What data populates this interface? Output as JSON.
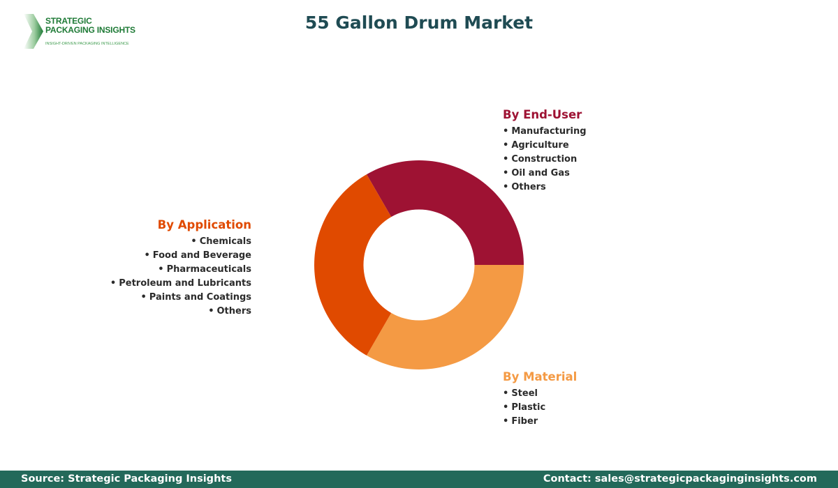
{
  "logo": {
    "line1": "STRATEGIC",
    "line2": "PACKAGING INSIGHTS",
    "tagline": "INSIGHT-DRIVEN PACKAGING INTELLIGENCE",
    "icon": "chevron-arrow-icon",
    "color": "#1e7a36"
  },
  "header": {
    "title": "55 Gallon Drum Market"
  },
  "segments": {
    "end_user": {
      "heading": "By End-User",
      "color": "#9e1233",
      "items": [
        "Manufacturing",
        "Agriculture",
        "Construction",
        "Oil and Gas",
        "Others"
      ]
    },
    "application": {
      "heading": "By Application",
      "color": "#e04a00",
      "items": [
        "Chemicals",
        "Food and Beverage",
        "Pharmaceuticals",
        "Petroleum and Lubricants",
        "Paints and Coatings",
        "Others"
      ]
    },
    "material": {
      "heading": "By Material",
      "color": "#f49a44",
      "items": [
        "Steel",
        "Plastic",
        "Fiber"
      ]
    }
  },
  "bullet": "•",
  "chart_data": {
    "type": "pie",
    "subtype": "donut",
    "title": "55 Gallon Drum Market",
    "categories": [
      "By End-User",
      "By Material",
      "By Application"
    ],
    "values": [
      33.33,
      33.33,
      33.33
    ],
    "colors": [
      "#9e1233",
      "#f49a44",
      "#e04a00"
    ],
    "start_angle_deg": 120,
    "direction": "clockwise-from-top-left",
    "inner_radius_ratio": 0.53,
    "legend": "segment labels positioned beside chart"
  },
  "footer": {
    "source": "Source: Strategic Packaging Insights",
    "contact": "Contact: sales@strategicpackaginginsights.com",
    "background": "#23695a"
  }
}
